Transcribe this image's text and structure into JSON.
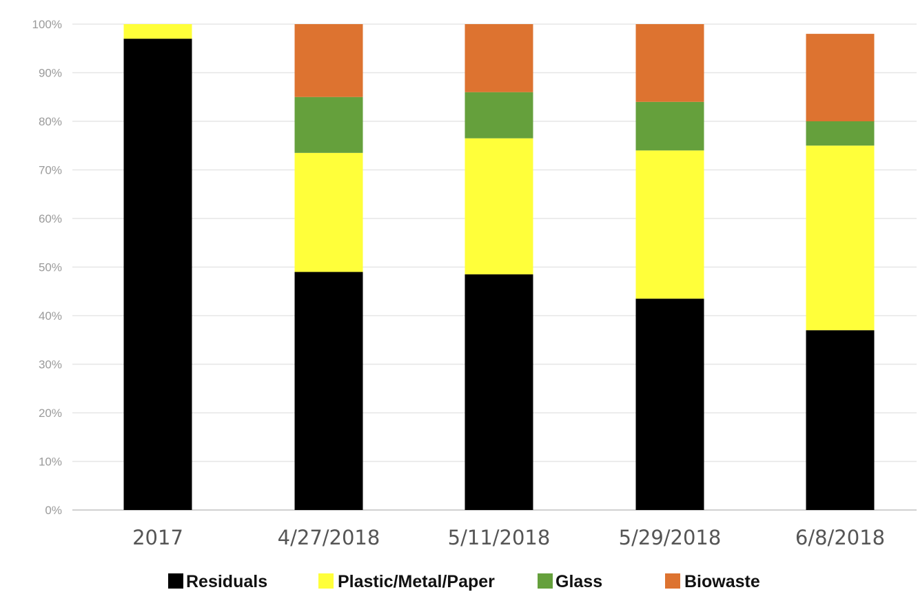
{
  "chart_data": {
    "type": "bar",
    "stacked": true,
    "title": "",
    "xlabel": "",
    "ylabel": "",
    "categories": [
      "2017",
      "4/27/2018",
      "5/11/2018",
      "5/29/2018",
      "6/8/2018"
    ],
    "ylim": [
      0,
      100
    ],
    "yticks": [
      0,
      10,
      20,
      30,
      40,
      50,
      60,
      70,
      80,
      90,
      100
    ],
    "ytick_suffix": "%",
    "grid": true,
    "legend_position": "bottom",
    "series": [
      {
        "name": "Residuals",
        "color": "#000000",
        "values": [
          97,
          49,
          48.5,
          43.5,
          37
        ]
      },
      {
        "name": "Plastic/Metal/Paper",
        "color": "#ffff3a",
        "values": [
          3,
          24.5,
          28,
          30.5,
          38
        ]
      },
      {
        "name": "Glass",
        "color": "#65a03c",
        "values": [
          0,
          11.5,
          9.5,
          10,
          5
        ]
      },
      {
        "name": "Biowaste",
        "color": "#dd7330",
        "values": [
          0,
          15,
          14,
          16,
          18
        ]
      }
    ]
  }
}
